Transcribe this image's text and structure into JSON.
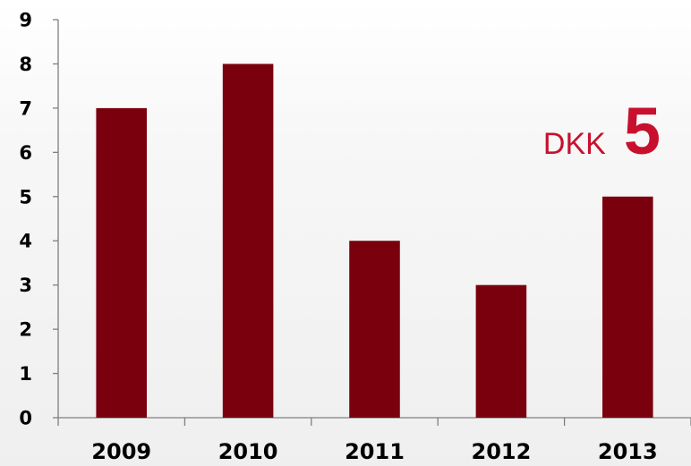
{
  "colors": {
    "bar": "#7a000e",
    "axis": "#7f7f7f",
    "callout": "#c8102e"
  },
  "callout": {
    "unit": "DKK",
    "value": "5"
  },
  "chart_data": {
    "type": "bar",
    "categories": [
      "2009",
      "2010",
      "2011",
      "2012",
      "2013"
    ],
    "values": [
      7,
      8,
      4,
      3,
      5
    ],
    "yticks": [
      "0",
      "1",
      "2",
      "3",
      "4",
      "5",
      "6",
      "7",
      "8",
      "9"
    ],
    "ylim": [
      0,
      9
    ],
    "title": "",
    "xlabel": "",
    "ylabel": "",
    "grid": false,
    "legend": "none"
  }
}
